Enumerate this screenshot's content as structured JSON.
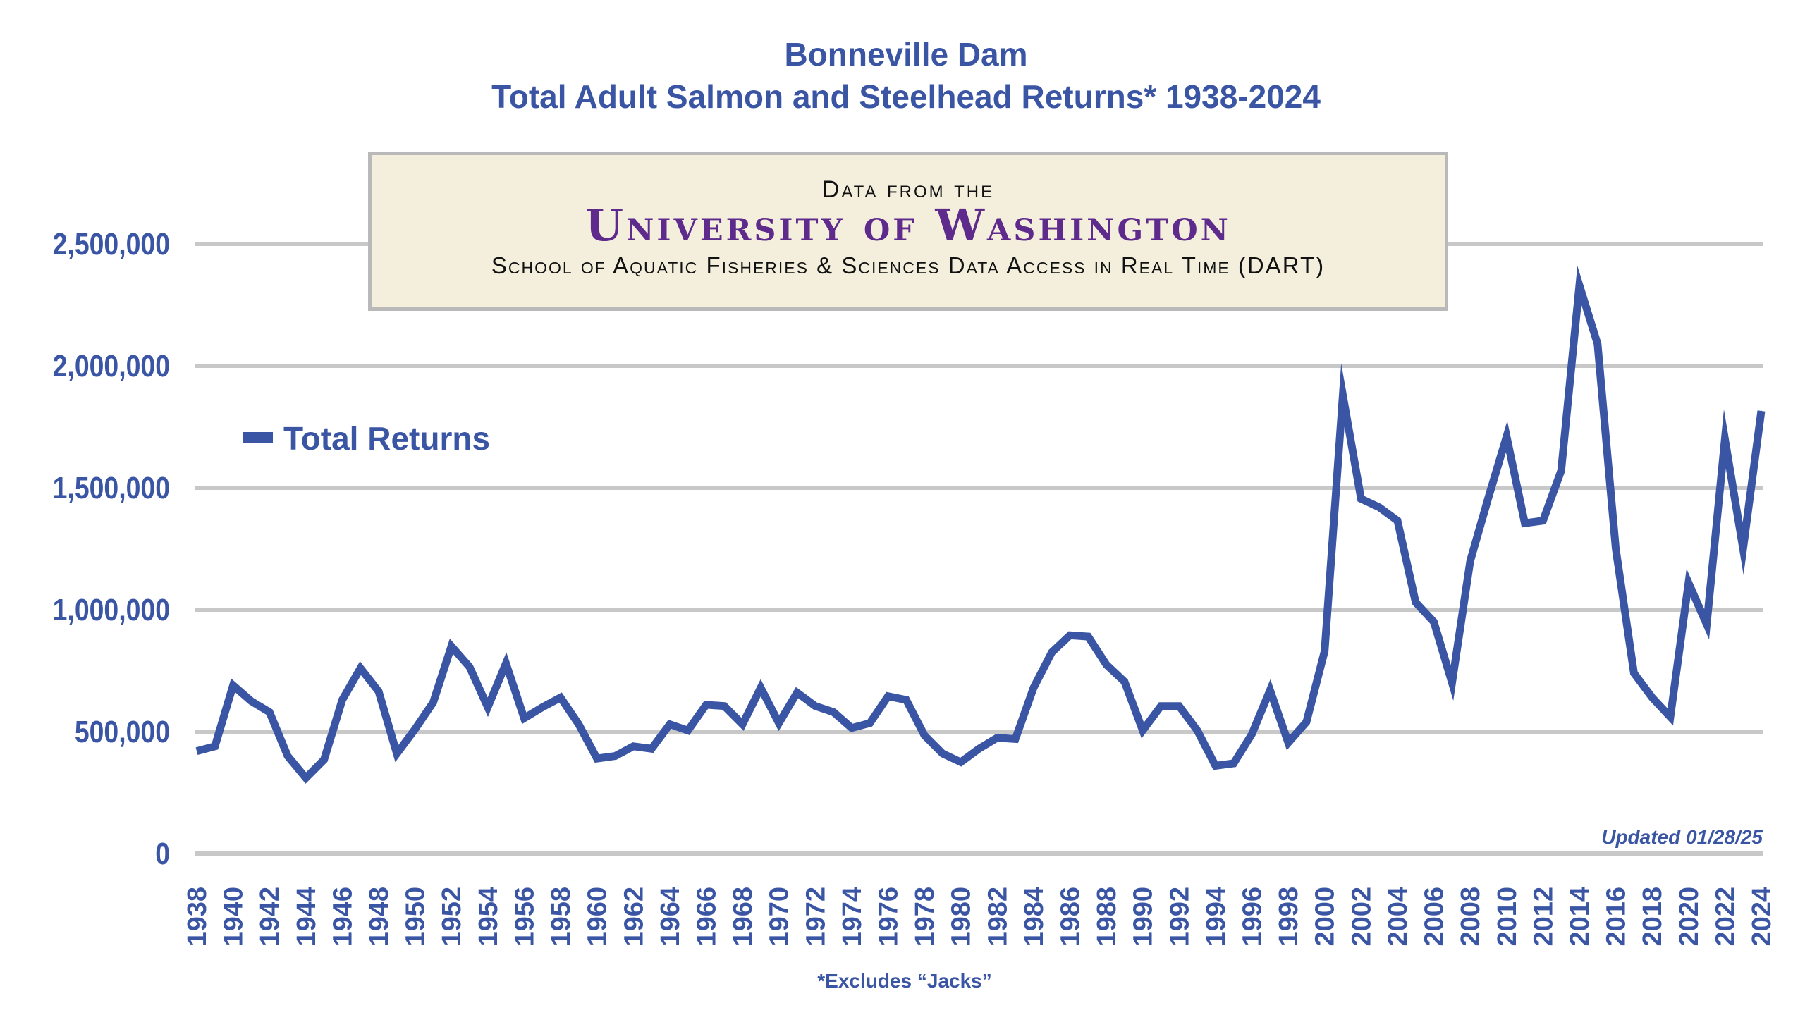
{
  "chart_data": {
    "type": "line",
    "title": "Bonneville Dam",
    "subtitle": "Total Adult Salmon and Steelhead Returns* 1938-2024",
    "xlabel": "",
    "ylabel": "",
    "ylim": [
      0,
      2500000
    ],
    "yticks": [
      0,
      500000,
      1000000,
      1500000,
      2000000,
      2500000
    ],
    "ytick_labels": [
      "0",
      "500,000",
      "1,000,000",
      "1,500,000",
      "2,000,000",
      "2,500,000"
    ],
    "grid": true,
    "legend": {
      "placement": "upper-left",
      "entries": [
        "Total Returns"
      ]
    },
    "series_color": "#3a55a4",
    "x": [
      1938,
      1939,
      1940,
      1941,
      1942,
      1943,
      1944,
      1945,
      1946,
      1947,
      1948,
      1949,
      1950,
      1951,
      1952,
      1953,
      1954,
      1955,
      1956,
      1957,
      1958,
      1959,
      1960,
      1961,
      1962,
      1963,
      1964,
      1965,
      1966,
      1967,
      1968,
      1969,
      1970,
      1971,
      1972,
      1973,
      1974,
      1975,
      1976,
      1977,
      1978,
      1979,
      1980,
      1981,
      1982,
      1983,
      1984,
      1985,
      1986,
      1987,
      1988,
      1989,
      1990,
      1991,
      1992,
      1993,
      1994,
      1995,
      1996,
      1997,
      1998,
      1999,
      2000,
      2001,
      2002,
      2003,
      2004,
      2005,
      2006,
      2007,
      2008,
      2009,
      2010,
      2011,
      2012,
      2013,
      2014,
      2015,
      2016,
      2017,
      2018,
      2019,
      2020,
      2021,
      2022,
      2023,
      2024
    ],
    "series": [
      {
        "name": "Total Returns",
        "values": [
          420000,
          440000,
          690000,
          625000,
          580000,
          400000,
          310000,
          385000,
          630000,
          760000,
          665000,
          410000,
          510000,
          620000,
          850000,
          765000,
          600000,
          780000,
          555000,
          600000,
          640000,
          530000,
          390000,
          400000,
          440000,
          430000,
          530000,
          505000,
          610000,
          605000,
          530000,
          680000,
          535000,
          660000,
          605000,
          580000,
          515000,
          535000,
          645000,
          630000,
          485000,
          410000,
          375000,
          430000,
          475000,
          470000,
          680000,
          825000,
          895000,
          890000,
          775000,
          705000,
          505000,
          605000,
          605000,
          505000,
          360000,
          370000,
          490000,
          670000,
          455000,
          540000,
          830000,
          1880000,
          1455000,
          1420000,
          1365000,
          1030000,
          950000,
          700000,
          1200000,
          1460000,
          1710000,
          1355000,
          1365000,
          1570000,
          2330000,
          2090000,
          1250000,
          740000,
          640000,
          560000,
          1110000,
          940000,
          1700000,
          1250000,
          1815000
        ]
      }
    ],
    "xtick_labels": [
      "1938",
      "1940",
      "1942",
      "1944",
      "1946",
      "1948",
      "1950",
      "1952",
      "1954",
      "1956",
      "1958",
      "1960",
      "1962",
      "1964",
      "1966",
      "1968",
      "1970",
      "1972",
      "1974",
      "1976",
      "1978",
      "1980",
      "1982",
      "1984",
      "1986",
      "1988",
      "1990",
      "1992",
      "1994",
      "1996",
      "1998",
      "2000",
      "2002",
      "2004",
      "2006",
      "2008",
      "2010",
      "2012",
      "2014",
      "2016",
      "2018",
      "2020",
      "2022",
      "2024"
    ],
    "annotations": {
      "updated": "Updated 01/28/25",
      "footnote": "*Excludes “Jacks”"
    }
  },
  "source_box": {
    "line1": "Data from the",
    "line2": "University of Washington",
    "line3": "School of Aquatic Fisheries & Sciences Data Access in Real Time (DART)"
  }
}
